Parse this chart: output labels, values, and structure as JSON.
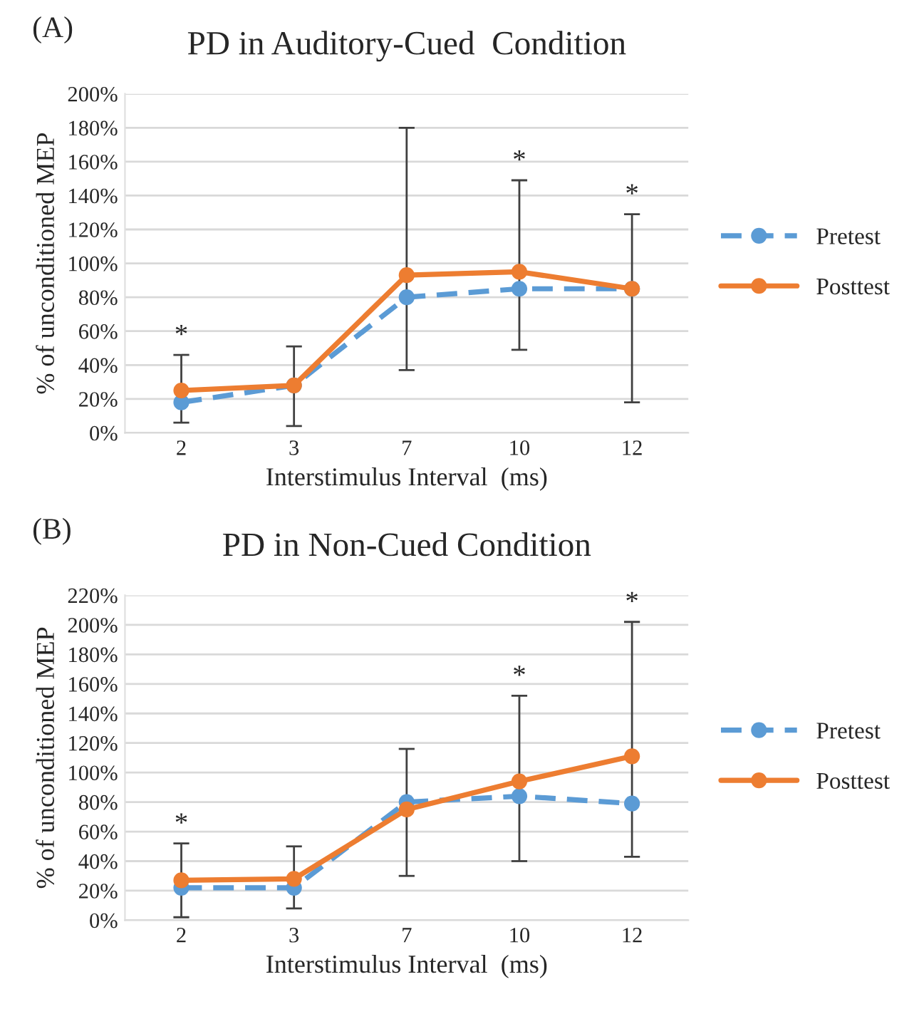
{
  "chart_data": [
    {
      "type": "line",
      "title": "PD in Auditory-Cued  Condition",
      "xlabel": "Interstimulus Interval  (ms)",
      "ylabel": "% of unconditioned MEP",
      "categories": [
        "2",
        "3",
        "7",
        "10",
        "12"
      ],
      "series": [
        {
          "name": "Pretest",
          "color": "#5b9bd5",
          "line_style": "dashed",
          "values": [
            18,
            28,
            80,
            85,
            85
          ]
        },
        {
          "name": "Posttest",
          "color": "#ed7d31",
          "line_style": "solid",
          "values": [
            25,
            28,
            93,
            95,
            85
          ],
          "errors": [
            [
              6,
              46
            ],
            [
              4,
              51
            ],
            [
              37,
              180
            ],
            [
              49,
              149
            ],
            [
              18,
              129
            ]
          ]
        }
      ],
      "ylim": [
        0,
        200
      ],
      "yticks": [
        {
          "value": 0,
          "label": "0%"
        },
        {
          "value": 20,
          "label": "20%"
        },
        {
          "value": 40,
          "label": "40%"
        },
        {
          "value": 60,
          "label": "60%"
        },
        {
          "value": 80,
          "label": "80%"
        },
        {
          "value": 100,
          "label": "100%"
        },
        {
          "value": 120,
          "label": "120%"
        },
        {
          "value": 140,
          "label": "140%"
        },
        {
          "value": 160,
          "label": "160%"
        },
        {
          "value": 180,
          "label": "180%"
        },
        {
          "value": 200,
          "label": "200%"
        }
      ],
      "grid": "y",
      "legend": "right",
      "marker": "circle",
      "annotations": [
        "(A)",
        {
          "text": "*",
          "x": "2",
          "y": 46
        },
        {
          "text": "*",
          "x": "10",
          "y": 149
        },
        {
          "text": "*",
          "x": "12",
          "y": 129
        }
      ]
    },
    {
      "type": "line",
      "title": "PD in Non-Cued Condition",
      "xlabel": "Interstimulus Interval  (ms)",
      "ylabel": "% of unconditioned MEP",
      "categories": [
        "2",
        "3",
        "7",
        "10",
        "12"
      ],
      "series": [
        {
          "name": "Pretest",
          "color": "#5b9bd5",
          "line_style": "dashed",
          "values": [
            22,
            22,
            80,
            84,
            79
          ]
        },
        {
          "name": "Posttest",
          "color": "#ed7d31",
          "line_style": "solid",
          "values": [
            27,
            28,
            75,
            94,
            111
          ],
          "errors": [
            [
              2,
              52
            ],
            [
              8,
              50
            ],
            [
              30,
              116
            ],
            [
              40,
              152
            ],
            [
              43,
              202
            ]
          ]
        }
      ],
      "ylim": [
        0,
        220
      ],
      "yticks": [
        {
          "value": 0,
          "label": "0%"
        },
        {
          "value": 20,
          "label": "20%"
        },
        {
          "value": 40,
          "label": "40%"
        },
        {
          "value": 60,
          "label": "60%"
        },
        {
          "value": 80,
          "label": "80%"
        },
        {
          "value": 100,
          "label": "100%"
        },
        {
          "value": 120,
          "label": "120%"
        },
        {
          "value": 140,
          "label": "140%"
        },
        {
          "value": 160,
          "label": "160%"
        },
        {
          "value": 180,
          "label": "180%"
        },
        {
          "value": 200,
          "label": "200%"
        },
        {
          "value": 220,
          "label": "220%"
        }
      ],
      "grid": "y",
      "legend": "right",
      "marker": "circle",
      "annotations": [
        "(B)",
        {
          "text": "*",
          "x": "2",
          "y": 52
        },
        {
          "text": "*",
          "x": "10",
          "y": 152
        },
        {
          "text": "*",
          "x": "12",
          "y": 202
        }
      ]
    }
  ]
}
